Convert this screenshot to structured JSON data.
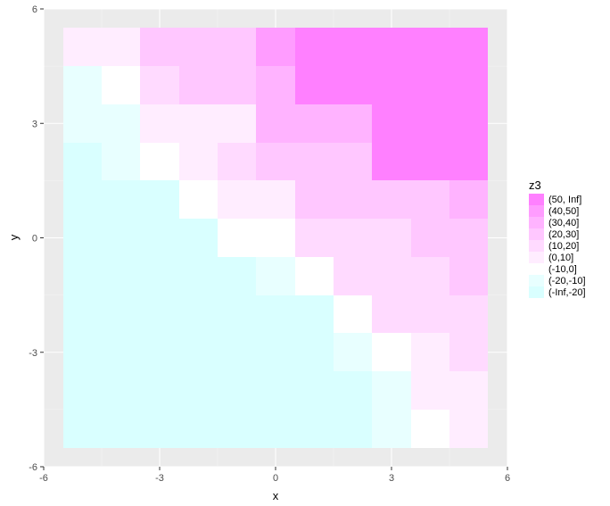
{
  "chart_data": {
    "type": "heatmap",
    "title": "",
    "xlabel": "x",
    "ylabel": "y",
    "xlim": [
      -6,
      6
    ],
    "ylim": [
      -6,
      6
    ],
    "x_ticks": [
      -6,
      -3,
      0,
      3,
      6
    ],
    "y_ticks": [
      -6,
      -3,
      0,
      3,
      6
    ],
    "x_tick_labels": [
      "-6",
      "-3",
      "0",
      "3",
      "6"
    ],
    "y_tick_labels": [
      "-6",
      "-3",
      "0",
      "3",
      "6"
    ],
    "grid": true,
    "legend": {
      "title": "z3",
      "position": "right",
      "labels": [
        "(50, Inf]",
        "(40,50]",
        "(30,40]",
        "(20,30]",
        "(10,20]",
        "(0,10]",
        "(-10,0]",
        "(-20,-10]",
        "(-Inf,-20]"
      ],
      "colors": [
        "#ff80ff",
        "#ff9cff",
        "#ffb3ff",
        "#ffc7ff",
        "#ffdaff",
        "#ffedff",
        "#ffffff",
        "#e8ffff",
        "#d9ffff"
      ]
    },
    "x": [
      -5,
      -4,
      -3,
      -2,
      -1,
      0,
      1,
      2,
      3,
      4,
      5
    ],
    "y": [
      -5,
      -4,
      -3,
      -2,
      -1,
      0,
      1,
      2,
      3,
      4,
      5
    ],
    "z_bins": [
      [
        8,
        8,
        8,
        8,
        8,
        8,
        8,
        8,
        7,
        6,
        5
      ],
      [
        8,
        8,
        8,
        8,
        8,
        8,
        8,
        8,
        7,
        5,
        5
      ],
      [
        8,
        8,
        8,
        8,
        8,
        8,
        8,
        7,
        6,
        5,
        4
      ],
      [
        8,
        8,
        8,
        8,
        8,
        8,
        8,
        6,
        4,
        4,
        4
      ],
      [
        8,
        8,
        8,
        8,
        8,
        7,
        6,
        4,
        4,
        4,
        3
      ],
      [
        8,
        8,
        8,
        8,
        6,
        6,
        4,
        4,
        4,
        3,
        3
      ],
      [
        8,
        8,
        8,
        6,
        5,
        5,
        3,
        3,
        3,
        3,
        2
      ],
      [
        8,
        7,
        6,
        5,
        4,
        3,
        3,
        3,
        0,
        0,
        0
      ],
      [
        7,
        7,
        5,
        5,
        5,
        2,
        2,
        2,
        0,
        0,
        0
      ],
      [
        7,
        6,
        4,
        3,
        3,
        2,
        0,
        0,
        0,
        0,
        0
      ],
      [
        5,
        5,
        3,
        3,
        3,
        1,
        0,
        0,
        0,
        0,
        0
      ]
    ]
  }
}
